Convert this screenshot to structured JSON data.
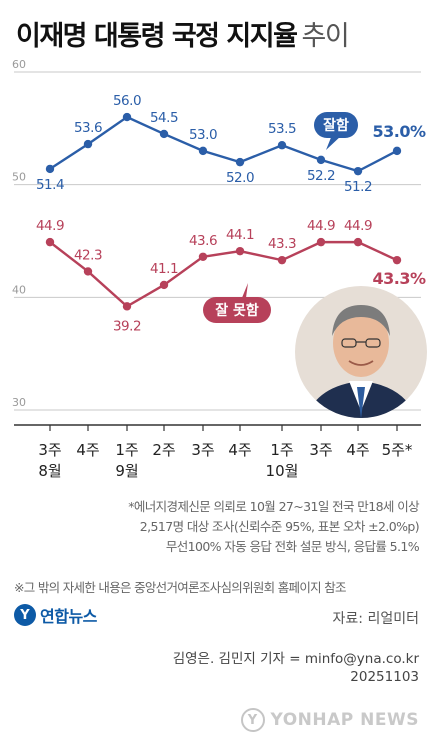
{
  "title": "이재명 대통령 국정 지지율",
  "subtitle": "추이",
  "chart_data": {
    "type": "line",
    "categories": [
      [
        "3주",
        "8월"
      ],
      [
        "4주",
        ""
      ],
      [
        "1주",
        "9월"
      ],
      [
        "2주",
        ""
      ],
      [
        "3주",
        ""
      ],
      [
        "4주",
        ""
      ],
      [
        "1주",
        "10월"
      ],
      [
        "3주",
        ""
      ],
      [
        "4주",
        ""
      ],
      [
        "5주*",
        ""
      ]
    ],
    "y_ticks": [
      "60",
      "50",
      "40",
      "30"
    ],
    "ylim": [
      30,
      60
    ],
    "grid": true,
    "series": [
      {
        "name": "잘함",
        "color": "#2b5ea8",
        "values": [
          51.4,
          53.6,
          56.0,
          54.5,
          53.0,
          52.0,
          53.5,
          52.2,
          51.2,
          53.0
        ],
        "labels": [
          "51.4",
          "53.6",
          "56.0",
          "54.5",
          "53.0",
          "52.0",
          "53.5",
          "52.2",
          "51.2",
          "53.0%"
        ]
      },
      {
        "name": "잘 못함",
        "color": "#b7415a",
        "values": [
          44.9,
          42.3,
          39.2,
          41.1,
          43.6,
          44.1,
          43.3,
          44.9,
          44.9,
          43.3
        ],
        "labels": [
          "44.9",
          "42.3",
          "39.2",
          "41.1",
          "43.6",
          "44.1",
          "43.3",
          "44.9",
          "44.9",
          "43.3%"
        ]
      }
    ]
  },
  "footnote": [
    "*에너지경제신문 의뢰로 10월 27~31일 전국 만18세 이상",
    "2,517명 대상 조사(신뢰수준 95%, 표본 오차 ±2.0%p)",
    "무선100% 자동 응답 전화 설문 방식, 응답률 5.1%"
  ],
  "note": "※그 밖의 자세한 내용은 중앙선거여론조사심의위원회 홈페이지 참조",
  "logo": {
    "mark": "Y",
    "text": "연합뉴스"
  },
  "source": "자료: 리얼미터",
  "credit": [
    "김영은. 김민지 기자 = minfo@yna.co.kr",
    "20251103"
  ],
  "watermark": {
    "mark": "Y",
    "text": "YONHAP NEWS"
  }
}
